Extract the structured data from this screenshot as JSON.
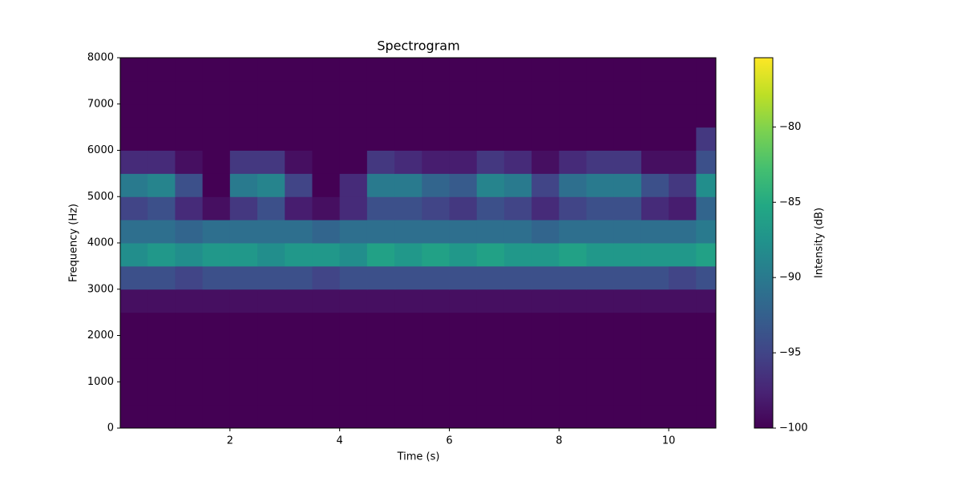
{
  "chart_data": {
    "type": "heatmap",
    "title": "Spectrogram",
    "x_label": "Time (s)",
    "y_label": "Frequency (Hz)",
    "colorbar_label": "Intensity (dB)",
    "colormap": "viridis",
    "xlim": [
      0,
      10.86
    ],
    "xticks": [
      2,
      4,
      6,
      8,
      10
    ],
    "ylim": [
      0,
      8000
    ],
    "yticks": [
      0,
      1000,
      2000,
      3000,
      4000,
      5000,
      6000,
      7000,
      8000
    ],
    "clim": [
      -100,
      -75.4
    ],
    "cticks": [
      {
        "value": -100,
        "label": "−100"
      },
      {
        "value": -95,
        "label": "−95"
      },
      {
        "value": -90,
        "label": "−90"
      },
      {
        "value": -85,
        "label": "−85"
      },
      {
        "value": -80,
        "label": "−80"
      }
    ],
    "x_edges": [
      0,
      0.5,
      1,
      1.5,
      2,
      2.5,
      3,
      3.5,
      4,
      4.5,
      5,
      5.5,
      6,
      6.5,
      7,
      7.5,
      8,
      8.5,
      9,
      9.5,
      10,
      10.5,
      10.86
    ],
    "y_edges": [
      0,
      500,
      1000,
      1500,
      2000,
      2500,
      3000,
      3500,
      4000,
      4500,
      5000,
      5500,
      6000,
      6500,
      7000,
      7500,
      8000
    ],
    "z": [
      [
        -100,
        -100,
        -100,
        -100,
        -100,
        -100,
        -100,
        -100,
        -100,
        -100,
        -100,
        -100,
        -100,
        -100,
        -100,
        -100,
        -100,
        -100,
        -100,
        -100,
        -100,
        -100
      ],
      [
        -100,
        -100,
        -100,
        -100,
        -100,
        -100,
        -100,
        -100,
        -100,
        -100,
        -100,
        -100,
        -100,
        -100,
        -100,
        -100,
        -100,
        -100,
        -100,
        -100,
        -100,
        -100
      ],
      [
        -100,
        -100,
        -100,
        -100,
        -100,
        -100,
        -100,
        -100,
        -100,
        -100,
        -100,
        -100,
        -100,
        -100,
        -100,
        -100,
        -100,
        -100,
        -100,
        -100,
        -100,
        -100
      ],
      [
        -100,
        -100,
        -100,
        -100,
        -100,
        -100,
        -100,
        -100,
        -100,
        -100,
        -100,
        -100,
        -100,
        -100,
        -100,
        -100,
        -100,
        -100,
        -100,
        -100,
        -100,
        -100
      ],
      [
        -100,
        -100,
        -100,
        -100,
        -100,
        -100,
        -100,
        -100,
        -100,
        -100,
        -100,
        -100,
        -100,
        -100,
        -100,
        -100,
        -100,
        -100,
        -100,
        -100,
        -100,
        -100
      ],
      [
        -99,
        -99,
        -99,
        -99,
        -99,
        -99,
        -99,
        -99,
        -99,
        -99,
        -99,
        -99,
        -99,
        -99,
        -99,
        -99,
        -99,
        -99,
        -99,
        -99,
        -99,
        -99
      ],
      [
        -94,
        -94,
        -95,
        -94,
        -94,
        -94,
        -94,
        -95,
        -94,
        -94,
        -94,
        -94,
        -94,
        -94,
        -94,
        -94,
        -94,
        -94,
        -94,
        -94,
        -95,
        -94
      ],
      [
        -88,
        -87,
        -88,
        -87,
        -87,
        -88,
        -87,
        -87,
        -88,
        -86,
        -87,
        -86,
        -87,
        -86,
        -87,
        -87,
        -86,
        -87,
        -87,
        -87,
        -87,
        -86
      ],
      [
        -91,
        -91,
        -92,
        -91,
        -91,
        -91,
        -91,
        -92,
        -91,
        -91,
        -91,
        -91,
        -91,
        -91,
        -91,
        -92,
        -91,
        -91,
        -91,
        -91,
        -91,
        -90
      ],
      [
        -95,
        -94,
        -97,
        -99,
        -96,
        -94,
        -98,
        -99,
        -97,
        -94,
        -94,
        -95,
        -96,
        -94,
        -95,
        -97,
        -95,
        -94,
        -94,
        -97,
        -98,
        -92
      ],
      [
        -90,
        -89,
        -94,
        -100,
        -90,
        -89,
        -95,
        -100,
        -97,
        -90,
        -90,
        -92,
        -93,
        -89,
        -90,
        -95,
        -91,
        -90,
        -90,
        -94,
        -96,
        -88
      ],
      [
        -97,
        -97,
        -99,
        -100,
        -96,
        -96,
        -99,
        -100,
        -100,
        -96,
        -97,
        -98,
        -98,
        -96,
        -97,
        -99,
        -97,
        -96,
        -96,
        -99,
        -99,
        -94
      ],
      [
        -100,
        -100,
        -100,
        -100,
        -100,
        -100,
        -100,
        -100,
        -100,
        -100,
        -100,
        -100,
        -100,
        -100,
        -100,
        -100,
        -100,
        -100,
        -100,
        -100,
        -100,
        -96
      ],
      [
        -100,
        -100,
        -100,
        -100,
        -100,
        -100,
        -100,
        -100,
        -100,
        -100,
        -100,
        -100,
        -100,
        -100,
        -100,
        -100,
        -100,
        -100,
        -100,
        -100,
        -100,
        -100
      ],
      [
        -100,
        -100,
        -100,
        -100,
        -100,
        -100,
        -100,
        -100,
        -100,
        -100,
        -100,
        -100,
        -100,
        -100,
        -100,
        -100,
        -100,
        -100,
        -100,
        -100,
        -100,
        -100
      ],
      [
        -100,
        -100,
        -100,
        -100,
        -100,
        -100,
        -100,
        -100,
        -100,
        -100,
        -100,
        -100,
        -100,
        -100,
        -100,
        -100,
        -100,
        -100,
        -100,
        -100,
        -100,
        -100
      ]
    ]
  }
}
